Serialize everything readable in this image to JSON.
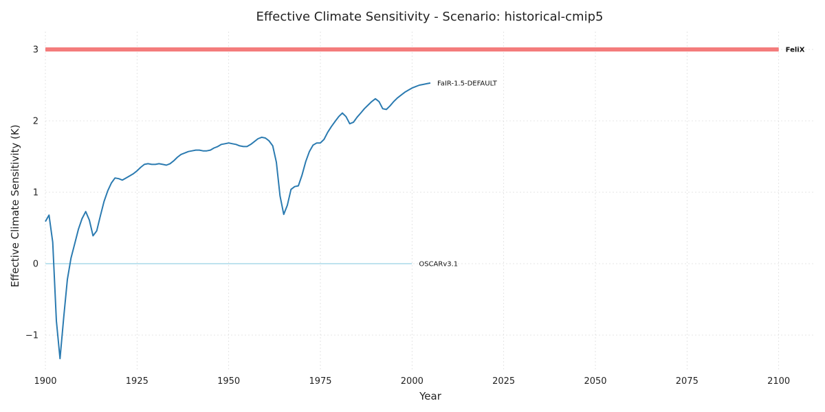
{
  "chart_data": {
    "type": "line",
    "title": "Effective Climate Sensitivity - Scenario: historical-cmip5",
    "xlabel": "Year",
    "ylabel": "Effective Climate Sensitivity (K)",
    "xlim": [
      1900,
      2110
    ],
    "ylim": [
      -1.5,
      3.25
    ],
    "xticks": [
      1900,
      1925,
      1950,
      1975,
      2000,
      2025,
      2050,
      2075,
      2100
    ],
    "yticks": [
      -1,
      0,
      1,
      2,
      3
    ],
    "grid": true,
    "legend": "none (series labeled inline at line ends)",
    "series": [
      {
        "name": "FeliX",
        "color": "#f47c7c",
        "emphasis": "bold",
        "x": [
          1900,
          2100
        ],
        "y": [
          3.0,
          3.0
        ]
      },
      {
        "name": "FaIR-1.5-DEFAULT",
        "color": "#2a7ab0",
        "x": [
          1900,
          1901,
          1902,
          1903,
          1904,
          1905,
          1906,
          1907,
          1908,
          1909,
          1910,
          1911,
          1912,
          1913,
          1914,
          1915,
          1916,
          1917,
          1918,
          1919,
          1920,
          1921,
          1922,
          1923,
          1924,
          1925,
          1926,
          1927,
          1928,
          1929,
          1930,
          1931,
          1932,
          1933,
          1934,
          1935,
          1936,
          1937,
          1938,
          1939,
          1940,
          1941,
          1942,
          1943,
          1944,
          1945,
          1946,
          1947,
          1948,
          1949,
          1950,
          1951,
          1952,
          1953,
          1954,
          1955,
          1956,
          1957,
          1958,
          1959,
          1960,
          1961,
          1962,
          1963,
          1964,
          1965,
          1966,
          1967,
          1968,
          1969,
          1970,
          1971,
          1972,
          1973,
          1974,
          1975,
          1976,
          1977,
          1978,
          1979,
          1980,
          1981,
          1982,
          1983,
          1984,
          1985,
          1986,
          1987,
          1988,
          1989,
          1990,
          1991,
          1992,
          1993,
          1994,
          1995,
          1996,
          1997,
          1998,
          1999,
          2000,
          2001,
          2002,
          2003,
          2004,
          2005
        ],
        "y": [
          0.59,
          0.68,
          0.3,
          -0.8,
          -1.33,
          -0.75,
          -0.22,
          0.08,
          0.28,
          0.48,
          0.63,
          0.73,
          0.61,
          0.39,
          0.46,
          0.67,
          0.87,
          1.02,
          1.13,
          1.2,
          1.19,
          1.17,
          1.2,
          1.23,
          1.26,
          1.3,
          1.35,
          1.39,
          1.4,
          1.39,
          1.39,
          1.4,
          1.39,
          1.38,
          1.4,
          1.44,
          1.49,
          1.53,
          1.55,
          1.57,
          1.58,
          1.59,
          1.59,
          1.58,
          1.58,
          1.59,
          1.62,
          1.64,
          1.67,
          1.68,
          1.69,
          1.68,
          1.67,
          1.65,
          1.64,
          1.64,
          1.67,
          1.71,
          1.75,
          1.77,
          1.76,
          1.72,
          1.65,
          1.42,
          0.95,
          0.69,
          0.82,
          1.04,
          1.08,
          1.09,
          1.24,
          1.43,
          1.57,
          1.66,
          1.69,
          1.69,
          1.74,
          1.84,
          1.92,
          1.99,
          2.06,
          2.11,
          2.06,
          1.96,
          1.98,
          2.05,
          2.11,
          2.17,
          2.22,
          2.27,
          2.31,
          2.27,
          2.17,
          2.16,
          2.21,
          2.27,
          2.32,
          2.36,
          2.4,
          2.43,
          2.46,
          2.48,
          2.5,
          2.51,
          2.52,
          2.53
        ]
      },
      {
        "name": "OSCARv3.1",
        "color": "#a9d9e8",
        "x": [
          1900,
          2000
        ],
        "y": [
          0.0,
          0.0
        ]
      }
    ]
  }
}
